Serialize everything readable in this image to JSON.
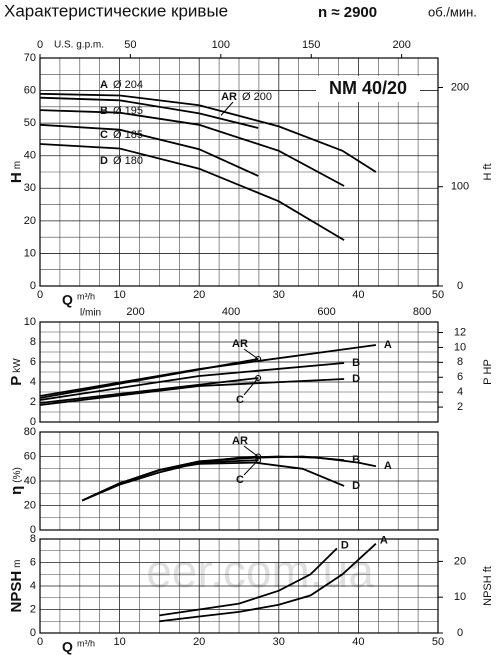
{
  "title": "Характеристические кривые",
  "speed": "n ≈ 2900",
  "speed_unit": "об./мин.",
  "watermark": "eer.com.ua",
  "chart_data": [
    {
      "type": "line",
      "model": "NM 40/20",
      "ylabel": "H",
      "yunit": "m",
      "y2label": "H",
      "y2unit": "ft",
      "xlabel": "Q",
      "xunit": "m³/h",
      "xlim": [
        0,
        50
      ],
      "xticks": [
        0,
        10,
        20,
        30,
        40,
        50
      ],
      "ylim": [
        0,
        70
      ],
      "yticks": [
        0,
        10,
        20,
        30,
        40,
        50,
        60,
        70
      ],
      "y2lim": [
        0,
        229.7
      ],
      "y2ticks": [
        0,
        100,
        200
      ],
      "top_axis": {
        "label": "U.S. g.p.m.",
        "lim": [
          0,
          220.1
        ],
        "ticks": [
          0,
          50,
          100,
          150,
          200
        ]
      },
      "bottom_axis2": {
        "label": "l/min",
        "lim": [
          0,
          833.3
        ],
        "ticks": [
          200,
          400,
          600,
          800
        ]
      },
      "grid": true,
      "series": [
        {
          "name": "A",
          "diameter": "Ø 204",
          "color": "#000",
          "x": [
            0,
            10,
            20,
            30,
            38,
            42.2
          ],
          "values": [
            59,
            58.5,
            55.5,
            49,
            41.5,
            35
          ]
        },
        {
          "name": "AR",
          "diameter": "Ø 200",
          "color": "#000",
          "x": [
            0,
            10,
            20,
            27.4
          ],
          "values": [
            57.8,
            57,
            53,
            48.5
          ]
        },
        {
          "name": "B",
          "diameter": "Ø 195",
          "color": "#000",
          "x": [
            0,
            10,
            20,
            30,
            38.2
          ],
          "values": [
            54,
            53.2,
            49.5,
            41.5,
            30.7
          ]
        },
        {
          "name": "C",
          "diameter": "Ø 185",
          "color": "#000",
          "x": [
            0,
            10,
            20,
            27.4
          ],
          "values": [
            49.5,
            48,
            42,
            33.8
          ]
        },
        {
          "name": "D",
          "diameter": "Ø 180",
          "color": "#000",
          "x": [
            0,
            10,
            20,
            30,
            38.2
          ],
          "values": [
            43.6,
            42.2,
            36,
            26,
            14.1
          ]
        }
      ]
    },
    {
      "type": "line",
      "ylabel": "P",
      "yunit": "kW",
      "y2label": "P",
      "y2unit": "HP",
      "xlim": [
        0,
        50
      ],
      "xticks": [
        0,
        10,
        20,
        30,
        40,
        50
      ],
      "ylim": [
        0,
        10
      ],
      "yticks": [
        0,
        2,
        4,
        6,
        8,
        10
      ],
      "y2lim": [
        0,
        13.41
      ],
      "y2ticks": [
        2,
        4,
        6,
        8,
        10,
        12
      ],
      "grid": true,
      "series": [
        {
          "name": "A",
          "color": "#000",
          "x": [
            0,
            20,
            42.2
          ],
          "values": [
            2.6,
            5.3,
            7.7
          ]
        },
        {
          "name": "AR",
          "color": "#000",
          "x": [
            0,
            27.4
          ],
          "values": [
            2.4,
            6.3
          ]
        },
        {
          "name": "B",
          "color": "#000",
          "x": [
            0,
            20,
            38.2
          ],
          "values": [
            2.2,
            4.6,
            5.9
          ]
        },
        {
          "name": "C",
          "color": "#000",
          "x": [
            0,
            27.4
          ],
          "values": [
            1.9,
            4.4
          ]
        },
        {
          "name": "D",
          "color": "#000",
          "x": [
            0,
            20,
            38.2
          ],
          "values": [
            1.7,
            3.6,
            4.3
          ]
        }
      ]
    },
    {
      "type": "line",
      "ylabel": "η",
      "yunit": "(%)",
      "xlim": [
        0,
        50
      ],
      "xticks": [
        0,
        10,
        20,
        30,
        40,
        50
      ],
      "ylim": [
        0,
        80
      ],
      "yticks": [
        0,
        20,
        40,
        60,
        80
      ],
      "grid": true,
      "series": [
        {
          "name": "A",
          "color": "#000",
          "x": [
            5.3,
            10,
            15,
            20,
            25,
            30,
            35,
            40,
            42.2
          ],
          "values": [
            24,
            37,
            47,
            55,
            59,
            60,
            59,
            55,
            52
          ]
        },
        {
          "name": "AR",
          "color": "#000",
          "x": [
            5.3,
            10,
            15,
            20,
            27.4
          ],
          "values": [
            24,
            38,
            49,
            56,
            60
          ]
        },
        {
          "name": "B",
          "color": "#000",
          "x": [
            5.3,
            10,
            15,
            20,
            27,
            33,
            38.2
          ],
          "values": [
            24,
            38,
            49,
            56,
            59,
            60,
            57
          ]
        },
        {
          "name": "C",
          "color": "#000",
          "x": [
            5.3,
            10,
            15,
            20,
            27.4
          ],
          "values": [
            24,
            38,
            49,
            55,
            57
          ]
        },
        {
          "name": "D",
          "color": "#000",
          "x": [
            5.3,
            10,
            15,
            20,
            27,
            33,
            38.2
          ],
          "values": [
            24,
            38,
            49,
            54,
            55,
            50,
            36
          ]
        }
      ]
    },
    {
      "type": "line",
      "ylabel": "NPSH",
      "yunit": "m",
      "y2label": "NPSH",
      "y2unit": "ft",
      "xlabel": "Q",
      "xunit": "m³/h",
      "xlim": [
        0,
        50
      ],
      "xticks": [
        0,
        10,
        20,
        30,
        40,
        50
      ],
      "ylim": [
        0,
        8
      ],
      "yticks": [
        0,
        2,
        4,
        6,
        8
      ],
      "y2lim": [
        0,
        26.25
      ],
      "y2ticks": [
        0,
        10,
        20
      ],
      "grid": true,
      "series": [
        {
          "name": "A",
          "color": "#000",
          "x": [
            15,
            20,
            25,
            30,
            34,
            38,
            42.2
          ],
          "values": [
            1,
            1.4,
            1.8,
            2.4,
            3.2,
            5,
            7.6
          ]
        },
        {
          "name": "D",
          "color": "#000",
          "x": [
            15,
            20,
            25,
            30,
            34,
            37.3
          ],
          "values": [
            1.5,
            2,
            2.5,
            3.6,
            5,
            7.2
          ]
        }
      ]
    }
  ]
}
